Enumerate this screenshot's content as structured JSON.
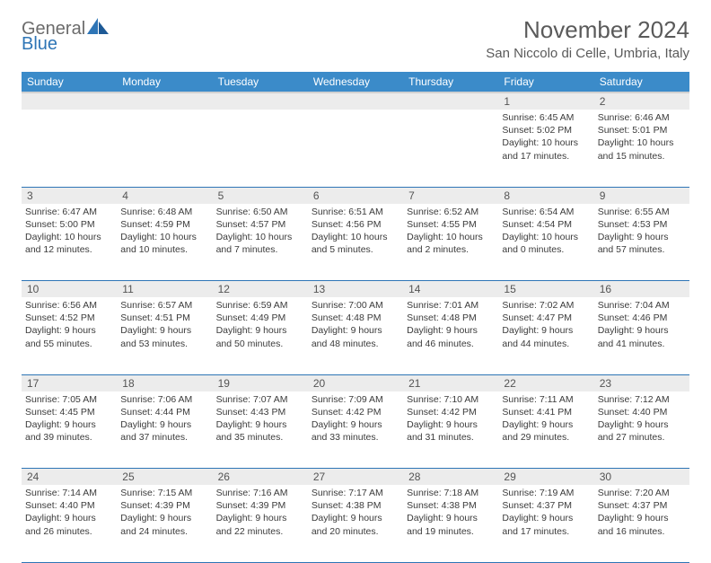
{
  "brand": {
    "text1": "General",
    "text2": "Blue"
  },
  "title": "November 2024",
  "location": "San Niccolo di Celle, Umbria, Italy",
  "colors": {
    "header_bg": "#3b8bc9",
    "header_text": "#ffffff",
    "daynum_bg": "#ececec",
    "rule": "#2e75b6",
    "text": "#3b3b3b"
  },
  "weekdays": [
    "Sunday",
    "Monday",
    "Tuesday",
    "Wednesday",
    "Thursday",
    "Friday",
    "Saturday"
  ],
  "weeks": [
    [
      null,
      null,
      null,
      null,
      null,
      {
        "n": "1",
        "sr": "Sunrise: 6:45 AM",
        "ss": "Sunset: 5:02 PM",
        "d1": "Daylight: 10 hours",
        "d2": "and 17 minutes."
      },
      {
        "n": "2",
        "sr": "Sunrise: 6:46 AM",
        "ss": "Sunset: 5:01 PM",
        "d1": "Daylight: 10 hours",
        "d2": "and 15 minutes."
      }
    ],
    [
      {
        "n": "3",
        "sr": "Sunrise: 6:47 AM",
        "ss": "Sunset: 5:00 PM",
        "d1": "Daylight: 10 hours",
        "d2": "and 12 minutes."
      },
      {
        "n": "4",
        "sr": "Sunrise: 6:48 AM",
        "ss": "Sunset: 4:59 PM",
        "d1": "Daylight: 10 hours",
        "d2": "and 10 minutes."
      },
      {
        "n": "5",
        "sr": "Sunrise: 6:50 AM",
        "ss": "Sunset: 4:57 PM",
        "d1": "Daylight: 10 hours",
        "d2": "and 7 minutes."
      },
      {
        "n": "6",
        "sr": "Sunrise: 6:51 AM",
        "ss": "Sunset: 4:56 PM",
        "d1": "Daylight: 10 hours",
        "d2": "and 5 minutes."
      },
      {
        "n": "7",
        "sr": "Sunrise: 6:52 AM",
        "ss": "Sunset: 4:55 PM",
        "d1": "Daylight: 10 hours",
        "d2": "and 2 minutes."
      },
      {
        "n": "8",
        "sr": "Sunrise: 6:54 AM",
        "ss": "Sunset: 4:54 PM",
        "d1": "Daylight: 10 hours",
        "d2": "and 0 minutes."
      },
      {
        "n": "9",
        "sr": "Sunrise: 6:55 AM",
        "ss": "Sunset: 4:53 PM",
        "d1": "Daylight: 9 hours",
        "d2": "and 57 minutes."
      }
    ],
    [
      {
        "n": "10",
        "sr": "Sunrise: 6:56 AM",
        "ss": "Sunset: 4:52 PM",
        "d1": "Daylight: 9 hours",
        "d2": "and 55 minutes."
      },
      {
        "n": "11",
        "sr": "Sunrise: 6:57 AM",
        "ss": "Sunset: 4:51 PM",
        "d1": "Daylight: 9 hours",
        "d2": "and 53 minutes."
      },
      {
        "n": "12",
        "sr": "Sunrise: 6:59 AM",
        "ss": "Sunset: 4:49 PM",
        "d1": "Daylight: 9 hours",
        "d2": "and 50 minutes."
      },
      {
        "n": "13",
        "sr": "Sunrise: 7:00 AM",
        "ss": "Sunset: 4:48 PM",
        "d1": "Daylight: 9 hours",
        "d2": "and 48 minutes."
      },
      {
        "n": "14",
        "sr": "Sunrise: 7:01 AM",
        "ss": "Sunset: 4:48 PM",
        "d1": "Daylight: 9 hours",
        "d2": "and 46 minutes."
      },
      {
        "n": "15",
        "sr": "Sunrise: 7:02 AM",
        "ss": "Sunset: 4:47 PM",
        "d1": "Daylight: 9 hours",
        "d2": "and 44 minutes."
      },
      {
        "n": "16",
        "sr": "Sunrise: 7:04 AM",
        "ss": "Sunset: 4:46 PM",
        "d1": "Daylight: 9 hours",
        "d2": "and 41 minutes."
      }
    ],
    [
      {
        "n": "17",
        "sr": "Sunrise: 7:05 AM",
        "ss": "Sunset: 4:45 PM",
        "d1": "Daylight: 9 hours",
        "d2": "and 39 minutes."
      },
      {
        "n": "18",
        "sr": "Sunrise: 7:06 AM",
        "ss": "Sunset: 4:44 PM",
        "d1": "Daylight: 9 hours",
        "d2": "and 37 minutes."
      },
      {
        "n": "19",
        "sr": "Sunrise: 7:07 AM",
        "ss": "Sunset: 4:43 PM",
        "d1": "Daylight: 9 hours",
        "d2": "and 35 minutes."
      },
      {
        "n": "20",
        "sr": "Sunrise: 7:09 AM",
        "ss": "Sunset: 4:42 PM",
        "d1": "Daylight: 9 hours",
        "d2": "and 33 minutes."
      },
      {
        "n": "21",
        "sr": "Sunrise: 7:10 AM",
        "ss": "Sunset: 4:42 PM",
        "d1": "Daylight: 9 hours",
        "d2": "and 31 minutes."
      },
      {
        "n": "22",
        "sr": "Sunrise: 7:11 AM",
        "ss": "Sunset: 4:41 PM",
        "d1": "Daylight: 9 hours",
        "d2": "and 29 minutes."
      },
      {
        "n": "23",
        "sr": "Sunrise: 7:12 AM",
        "ss": "Sunset: 4:40 PM",
        "d1": "Daylight: 9 hours",
        "d2": "and 27 minutes."
      }
    ],
    [
      {
        "n": "24",
        "sr": "Sunrise: 7:14 AM",
        "ss": "Sunset: 4:40 PM",
        "d1": "Daylight: 9 hours",
        "d2": "and 26 minutes."
      },
      {
        "n": "25",
        "sr": "Sunrise: 7:15 AM",
        "ss": "Sunset: 4:39 PM",
        "d1": "Daylight: 9 hours",
        "d2": "and 24 minutes."
      },
      {
        "n": "26",
        "sr": "Sunrise: 7:16 AM",
        "ss": "Sunset: 4:39 PM",
        "d1": "Daylight: 9 hours",
        "d2": "and 22 minutes."
      },
      {
        "n": "27",
        "sr": "Sunrise: 7:17 AM",
        "ss": "Sunset: 4:38 PM",
        "d1": "Daylight: 9 hours",
        "d2": "and 20 minutes."
      },
      {
        "n": "28",
        "sr": "Sunrise: 7:18 AM",
        "ss": "Sunset: 4:38 PM",
        "d1": "Daylight: 9 hours",
        "d2": "and 19 minutes."
      },
      {
        "n": "29",
        "sr": "Sunrise: 7:19 AM",
        "ss": "Sunset: 4:37 PM",
        "d1": "Daylight: 9 hours",
        "d2": "and 17 minutes."
      },
      {
        "n": "30",
        "sr": "Sunrise: 7:20 AM",
        "ss": "Sunset: 4:37 PM",
        "d1": "Daylight: 9 hours",
        "d2": "and 16 minutes."
      }
    ]
  ]
}
